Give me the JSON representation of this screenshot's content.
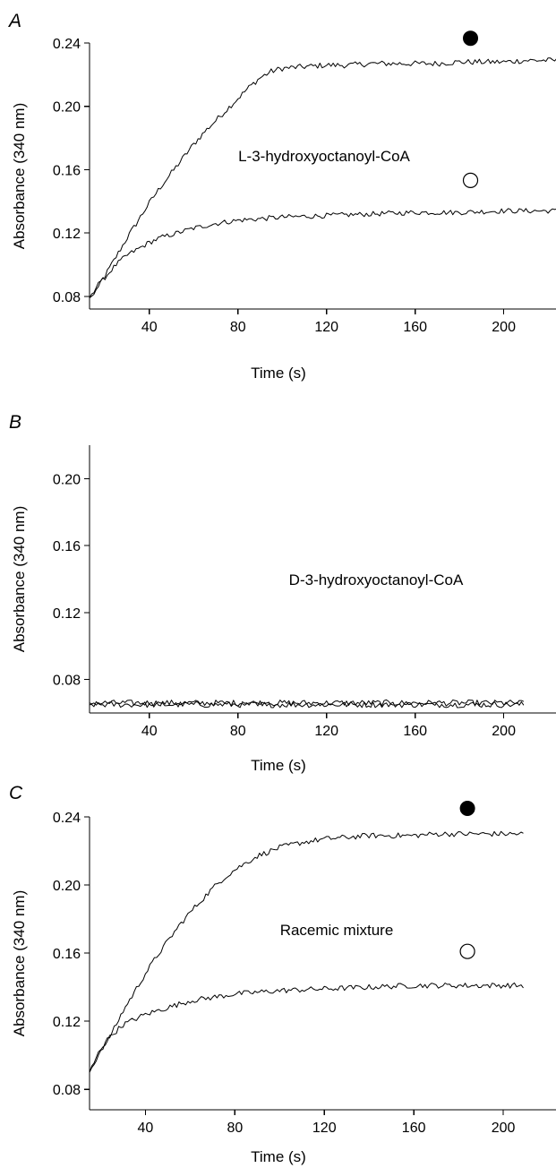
{
  "chart_data": [
    {
      "panel_label": "A",
      "type": "line",
      "xlabel": "Time (s)",
      "ylabel": "Absorbance (340 nm)",
      "xlim": [
        13,
        224
      ],
      "ylim": [
        0.072,
        0.24
      ],
      "xticks": [
        40,
        80,
        120,
        160,
        200
      ],
      "yticks": [
        0.08,
        0.12,
        0.16,
        0.2,
        0.24
      ],
      "xtick_labels": [
        "40",
        "80",
        "120",
        "160",
        "200"
      ],
      "ytick_labels": [
        "0.08",
        "0.12",
        "0.16",
        "0.20",
        "0.24"
      ],
      "annotation": "L-3-hydroxyoctanoyl-CoA",
      "series": [
        {
          "marker": "filled-circle",
          "noise": 0.0018,
          "x": [
            13,
            20,
            25,
            30,
            35,
            40,
            45,
            50,
            55,
            60,
            65,
            70,
            75,
            80,
            85,
            90,
            95,
            100,
            110,
            120,
            130,
            140,
            150,
            160,
            170,
            180,
            190,
            200,
            210,
            220,
            224
          ],
          "y": [
            0.079,
            0.093,
            0.105,
            0.117,
            0.128,
            0.139,
            0.149,
            0.158,
            0.167,
            0.176,
            0.184,
            0.191,
            0.198,
            0.205,
            0.212,
            0.218,
            0.222,
            0.224,
            0.225,
            0.226,
            0.226,
            0.227,
            0.227,
            0.227,
            0.227,
            0.228,
            0.228,
            0.228,
            0.229,
            0.229,
            0.229
          ]
        },
        {
          "marker": "open-circle",
          "noise": 0.0016,
          "x": [
            13,
            20,
            25,
            30,
            35,
            40,
            45,
            50,
            60,
            70,
            80,
            90,
            100,
            120,
            140,
            160,
            180,
            200,
            224
          ],
          "y": [
            0.079,
            0.092,
            0.1,
            0.106,
            0.11,
            0.114,
            0.117,
            0.119,
            0.123,
            0.126,
            0.128,
            0.129,
            0.13,
            0.131,
            0.132,
            0.133,
            0.133,
            0.134,
            0.134
          ]
        }
      ]
    },
    {
      "panel_label": "B",
      "type": "line",
      "xlabel": "Time (s)",
      "ylabel": "Absorbance (340 nm)",
      "xlim": [
        13,
        224
      ],
      "ylim": [
        0.06,
        0.22
      ],
      "xticks": [
        40,
        80,
        120,
        160,
        200
      ],
      "yticks": [
        0.08,
        0.12,
        0.16,
        0.2
      ],
      "xtick_labels": [
        "40",
        "80",
        "120",
        "160",
        "200"
      ],
      "ytick_labels": [
        "0.08",
        "0.12",
        "0.16",
        "0.20"
      ],
      "annotation": "D-3-hydroxyoctanoyl-CoA",
      "series": [
        {
          "noise": 0.0018,
          "x": [
            13,
            209
          ],
          "y": [
            0.066,
            0.066
          ]
        },
        {
          "noise": 0.0018,
          "x": [
            13,
            209
          ],
          "y": [
            0.065,
            0.065
          ]
        }
      ]
    },
    {
      "panel_label": "C",
      "type": "line",
      "xlabel": "Time (s)",
      "ylabel": "Absorbance (340 nm)",
      "xlim": [
        15,
        224
      ],
      "ylim": [
        0.068,
        0.24
      ],
      "xticks": [
        40,
        80,
        120,
        160,
        200
      ],
      "yticks": [
        0.08,
        0.12,
        0.16,
        0.2,
        0.24
      ],
      "xtick_labels": [
        "40",
        "80",
        "120",
        "160",
        "200"
      ],
      "ytick_labels": [
        "0.08",
        "0.12",
        "0.16",
        "0.20",
        "0.24"
      ],
      "annotation": "Racemic mixture",
      "series": [
        {
          "marker": "filled-circle",
          "noise": 0.0016,
          "x": [
            15,
            20,
            25,
            30,
            35,
            40,
            45,
            50,
            55,
            60,
            65,
            70,
            75,
            80,
            85,
            90,
            100,
            110,
            120,
            130,
            140,
            150,
            160,
            170,
            180,
            190,
            200,
            209
          ],
          "y": [
            0.09,
            0.103,
            0.113,
            0.126,
            0.137,
            0.148,
            0.158,
            0.167,
            0.176,
            0.184,
            0.191,
            0.198,
            0.204,
            0.209,
            0.213,
            0.217,
            0.222,
            0.225,
            0.227,
            0.228,
            0.229,
            0.229,
            0.229,
            0.23,
            0.23,
            0.23,
            0.23,
            0.23
          ]
        },
        {
          "marker": "open-circle",
          "noise": 0.0016,
          "x": [
            15,
            20,
            25,
            30,
            40,
            50,
            60,
            70,
            80,
            90,
            100,
            120,
            140,
            160,
            180,
            200,
            209
          ],
          "y": [
            0.09,
            0.104,
            0.112,
            0.118,
            0.124,
            0.128,
            0.132,
            0.134,
            0.136,
            0.137,
            0.138,
            0.139,
            0.14,
            0.141,
            0.141,
            0.141,
            0.141
          ]
        }
      ]
    }
  ]
}
